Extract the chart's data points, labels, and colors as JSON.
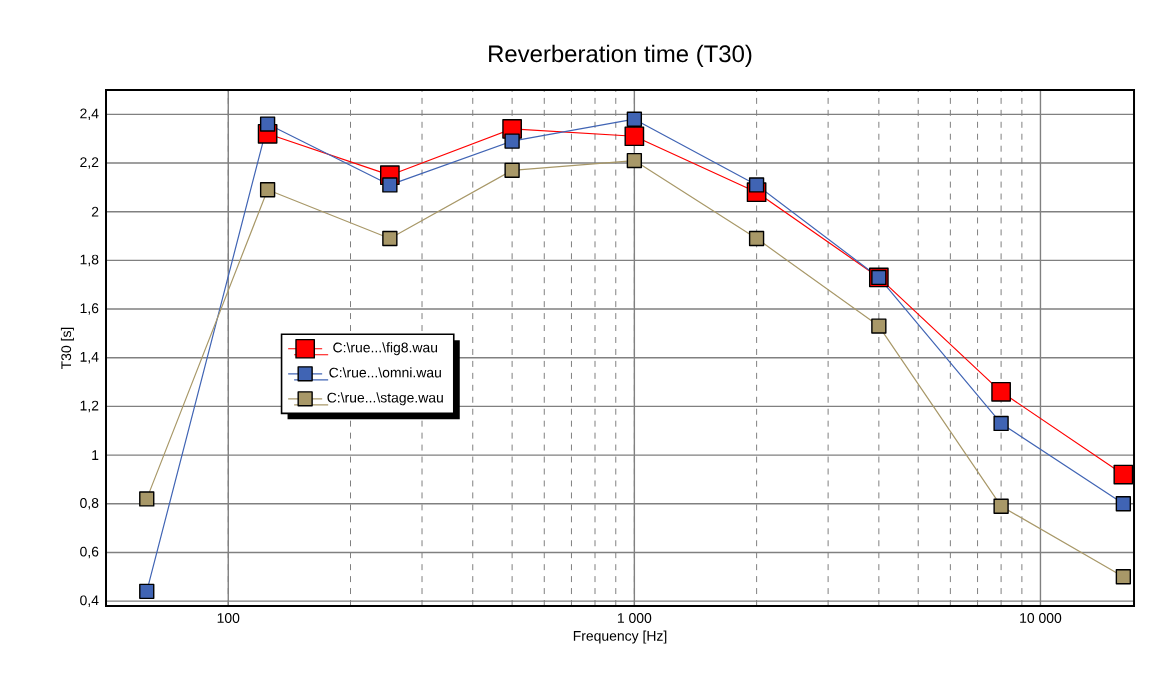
{
  "chart_data": {
    "type": "line",
    "title": "Reverberation time (T30)",
    "xlabel": "Frequency [Hz]",
    "ylabel": "T30 [s]",
    "x": [
      63,
      125,
      250,
      500,
      1000,
      2000,
      4000,
      8000,
      16000
    ],
    "log": "x",
    "grid": true,
    "legend": "left",
    "marker": "square",
    "line_style": "solid",
    "xlim": [
      50,
      17000
    ],
    "ylim": [
      0.38,
      2.5
    ],
    "xticks": [
      100,
      {
        "value": 1000,
        "label": "1 000"
      },
      {
        "value": 10000,
        "label": "10 000"
      }
    ],
    "yticks": [
      {
        "value": 0.4,
        "label": "0,4"
      },
      {
        "value": 0.6,
        "label": "0,6"
      },
      {
        "value": 0.8,
        "label": "0,8"
      },
      1,
      {
        "value": 1.2,
        "label": "1,2"
      },
      {
        "value": 1.4,
        "label": "1,4"
      },
      {
        "value": 1.6,
        "label": "1,6"
      },
      {
        "value": 1.8,
        "label": "1,8"
      },
      2,
      {
        "value": 2.2,
        "label": "2,2"
      },
      {
        "value": 2.4,
        "label": "2,4"
      }
    ],
    "series": [
      {
        "name": "C:\\rue...\\fig8.wau",
        "color": "#ff0000",
        "values": [
          null,
          2.32,
          2.15,
          2.34,
          2.31,
          2.08,
          1.73,
          1.26,
          0.92
        ]
      },
      {
        "name": "C:\\rue...\\omni.wau",
        "color": "#4064b4",
        "values": [
          0.44,
          2.36,
          2.11,
          2.29,
          2.38,
          2.11,
          1.73,
          1.13,
          0.8
        ]
      },
      {
        "name": "C:\\rue...\\stage.wau",
        "color": "#a89868",
        "values": [
          0.82,
          2.09,
          1.89,
          2.17,
          2.21,
          1.89,
          1.53,
          0.79,
          0.5
        ]
      }
    ]
  }
}
